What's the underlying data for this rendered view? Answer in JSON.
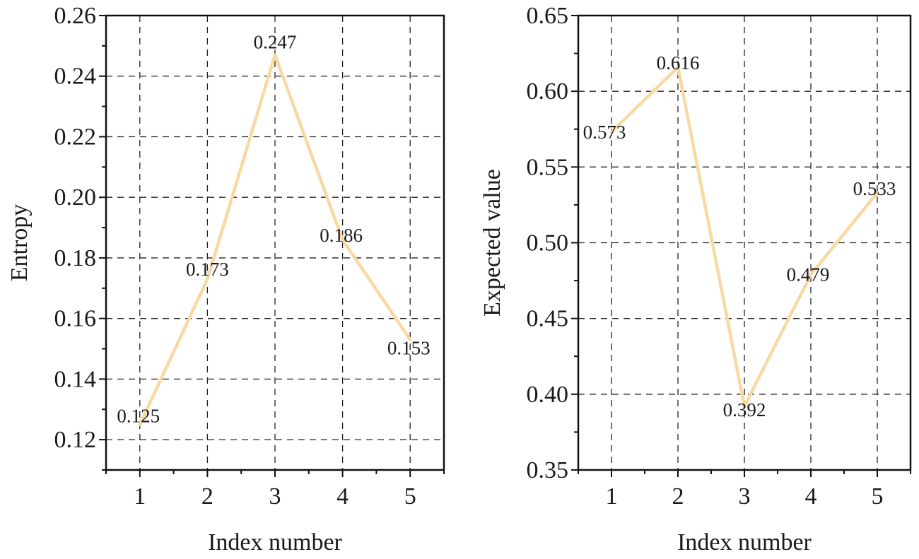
{
  "line_color": "#f8d9a4",
  "chart_data": [
    {
      "type": "line",
      "title": "",
      "xlabel": "Index number",
      "ylabel": "Entropy",
      "x": [
        1,
        2,
        3,
        4,
        5
      ],
      "xlim": [
        0.5,
        5.5
      ],
      "ylim": [
        0.11,
        0.26
      ],
      "xticks": [
        "1",
        "2",
        "3",
        "4",
        "5"
      ],
      "yticks": [
        "0.12",
        "0.14",
        "0.16",
        "0.18",
        "0.20",
        "0.22",
        "0.24",
        "0.26"
      ],
      "grid": true,
      "series": [
        {
          "values": [
            0.125,
            0.173,
            0.247,
            0.186,
            0.153
          ],
          "labels": [
            "0.125",
            "0.173",
            "0.247",
            "0.186",
            "0.153"
          ]
        }
      ]
    },
    {
      "type": "line",
      "title": "",
      "xlabel": "Index number",
      "ylabel": "Expected value",
      "x": [
        1,
        2,
        3,
        4,
        5
      ],
      "xlim": [
        0.5,
        5.5
      ],
      "ylim": [
        0.35,
        0.65
      ],
      "xticks": [
        "1",
        "2",
        "3",
        "4",
        "5"
      ],
      "yticks": [
        "0.35",
        "0.40",
        "0.45",
        "0.50",
        "0.55",
        "0.60",
        "0.65"
      ],
      "grid": true,
      "series": [
        {
          "values": [
            0.573,
            0.616,
            0.392,
            0.479,
            0.533
          ],
          "labels": [
            "0.573",
            "0.616",
            "0.392",
            "0.479",
            "0.533"
          ]
        }
      ]
    }
  ]
}
